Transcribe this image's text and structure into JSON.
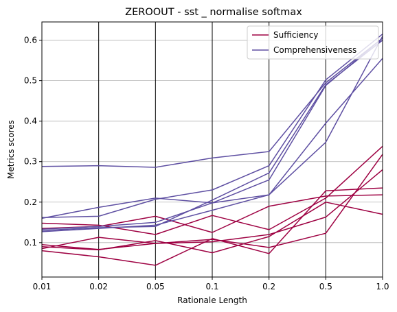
{
  "chart_data": {
    "type": "line",
    "title": "ZEROOUT - sst _ normalise softmax",
    "xlabel": "Rationale Length",
    "ylabel": "Metrics scores",
    "x_categories": [
      "0.01",
      "0.02",
      "0.05",
      "0.1",
      "0.2",
      "0.5",
      "1.0"
    ],
    "ylim": [
      0.015,
      0.645
    ],
    "yticks": [
      "0.1",
      "0.2",
      "0.3",
      "0.4",
      "0.5",
      "0.6"
    ],
    "ytick_values": [
      0.1,
      0.2,
      0.3,
      0.4,
      0.5,
      0.6
    ],
    "grid": "horizontal-y plus vertical lines at x ticks",
    "legend_position": "top-right",
    "colors": {
      "sufficiency": "#9e0142",
      "comprehensiveness": "#5e4fa2"
    },
    "series": [
      {
        "name": "Sufficiency",
        "group": "sufficiency",
        "values": [
          0.148,
          0.143,
          0.12,
          0.167,
          0.132,
          0.21,
          0.338
        ]
      },
      {
        "group": "sufficiency",
        "values": [
          0.135,
          0.14,
          0.165,
          0.125,
          0.19,
          0.215,
          0.218
        ]
      },
      {
        "group": "sufficiency",
        "values": [
          0.095,
          0.083,
          0.098,
          0.108,
          0.088,
          0.123,
          0.318
        ]
      },
      {
        "group": "sufficiency",
        "values": [
          0.085,
          0.113,
          0.098,
          0.102,
          0.12,
          0.163,
          0.28
        ]
      },
      {
        "group": "sufficiency",
        "values": [
          0.08,
          0.065,
          0.044,
          0.11,
          0.073,
          0.228,
          0.235
        ]
      },
      {
        "group": "sufficiency",
        "values": [
          0.09,
          0.082,
          0.105,
          0.075,
          0.115,
          0.2,
          0.17
        ]
      },
      {
        "name": "Comprehensiveness",
        "group": "comprehensiveness",
        "values": [
          0.288,
          0.29,
          0.286,
          0.309,
          0.325,
          0.495,
          0.605
        ]
      },
      {
        "group": "comprehensiveness",
        "values": [
          0.16,
          0.187,
          0.21,
          0.198,
          0.218,
          0.395,
          0.555
        ]
      },
      {
        "group": "comprehensiveness",
        "values": [
          0.162,
          0.165,
          0.207,
          0.23,
          0.29,
          0.502,
          0.615
        ]
      },
      {
        "group": "comprehensiveness",
        "values": [
          0.13,
          0.137,
          0.14,
          0.205,
          0.272,
          0.49,
          0.6
        ]
      },
      {
        "group": "comprehensiveness",
        "values": [
          0.127,
          0.135,
          0.143,
          0.18,
          0.218,
          0.348,
          0.61
        ]
      },
      {
        "group": "comprehensiveness",
        "values": [
          0.133,
          0.14,
          0.15,
          0.198,
          0.255,
          0.488,
          0.605
        ]
      }
    ],
    "legend": [
      {
        "label": "Sufficiency",
        "group": "sufficiency"
      },
      {
        "label": "Comprehensiveness",
        "group": "comprehensiveness"
      }
    ]
  }
}
